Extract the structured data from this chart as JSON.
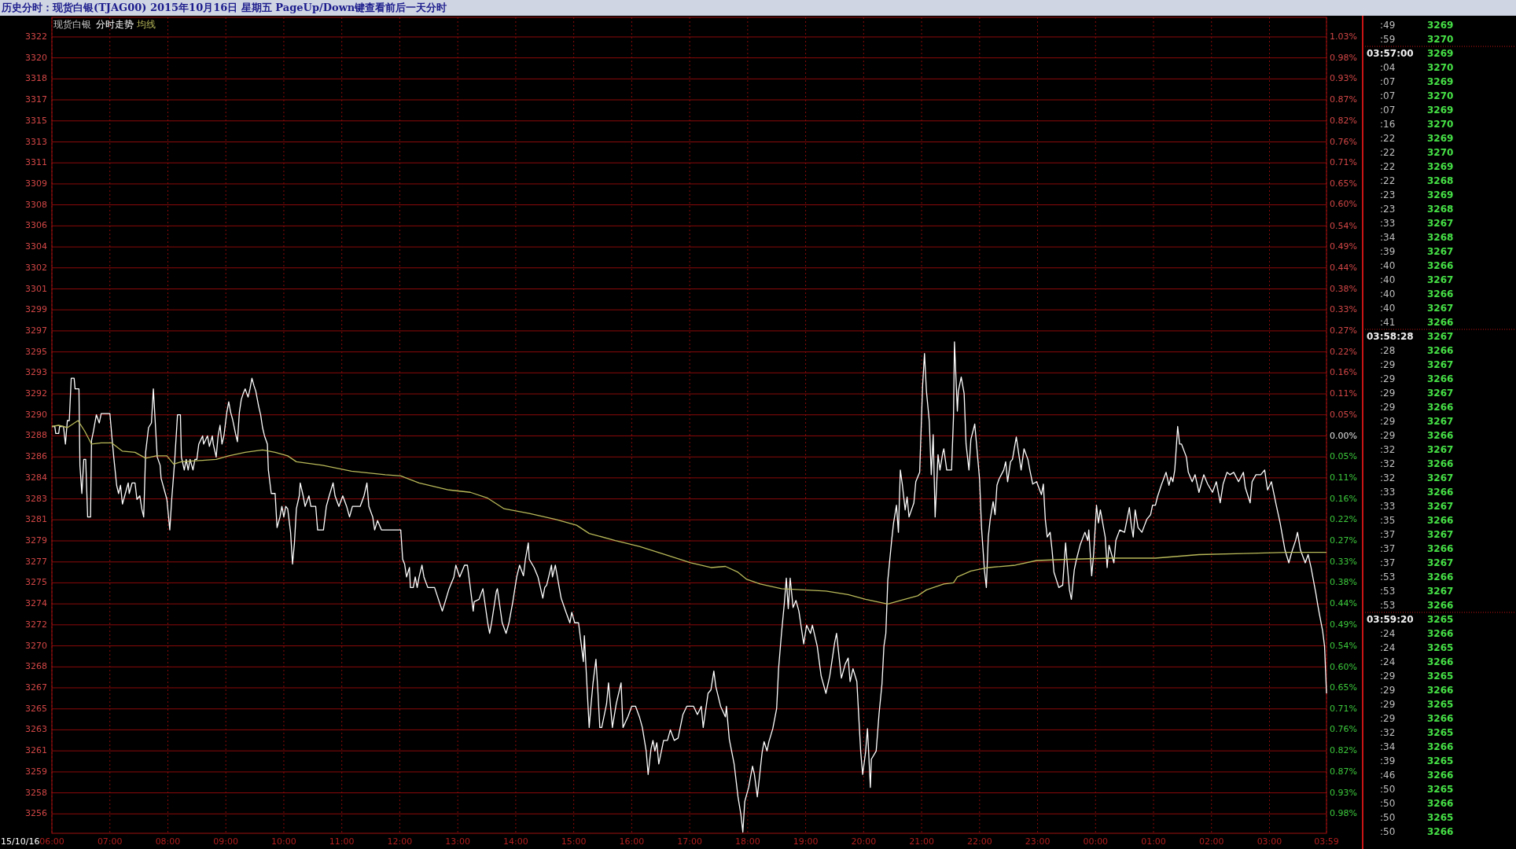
{
  "chart_data": [
    {
      "type": "line",
      "title": "历史分时：现货白银(TJAG00) 2015年10月16日 星期五  PageUp/Down键查看前后一天分时",
      "subtitle": "现货白银",
      "annotations": [
        "15/10/16"
      ],
      "legend": "top left",
      "grid": true,
      "xlim": [
        "2015-10-16T06:00",
        "2015-10-17T03:59"
      ],
      "xticks": [
        {
          "value": "2015-10-16T06:00",
          "label": "06:00"
        },
        {
          "value": "2015-10-16T07:00",
          "label": "07:00"
        },
        {
          "value": "2015-10-16T08:00",
          "label": "08:00"
        },
        {
          "value": "2015-10-16T09:00",
          "label": "09:00"
        },
        {
          "value": "2015-10-16T10:00",
          "label": "10:00"
        },
        {
          "value": "2015-10-16T11:00",
          "label": "11:00"
        },
        {
          "value": "2015-10-16T12:00",
          "label": "12:00"
        },
        {
          "value": "2015-10-16T13:00",
          "label": "13:00"
        },
        {
          "value": "2015-10-16T14:00",
          "label": "14:00"
        },
        {
          "value": "2015-10-16T15:00",
          "label": "15:00"
        },
        {
          "value": "2015-10-16T16:00",
          "label": "16:00"
        },
        {
          "value": "2015-10-16T17:00",
          "label": "17:00"
        },
        {
          "value": "2015-10-16T18:00",
          "label": "18:00"
        },
        {
          "value": "2015-10-16T19:00",
          "label": "19:00"
        },
        {
          "value": "2015-10-16T20:00",
          "label": "20:00"
        },
        {
          "value": "2015-10-16T21:00",
          "label": "21:00"
        },
        {
          "value": "2015-10-16T22:00",
          "label": "22:00"
        },
        {
          "value": "2015-10-16T23:00",
          "label": "23:00"
        },
        {
          "value": "2015-10-17T00:00",
          "label": "00:00"
        },
        {
          "value": "2015-10-17T01:00",
          "label": "01:00"
        },
        {
          "value": "2015-10-17T02:00",
          "label": "02:00"
        },
        {
          "value": "2015-10-17T03:00",
          "label": "03:00"
        },
        {
          "value": "2015-10-17T03:59",
          "label": "03:59"
        }
      ],
      "ylim": [
        3254.2,
        3323.6
      ],
      "yticks": [
        {
          "value": 3321.93,
          "label": "3322"
        },
        {
          "value": 3320.15,
          "label": "3320"
        },
        {
          "value": 3318.36,
          "label": "3318"
        },
        {
          "value": 3316.58,
          "label": "3317"
        },
        {
          "value": 3314.79,
          "label": "3315"
        },
        {
          "value": 3313.0,
          "label": "3313"
        },
        {
          "value": 3311.22,
          "label": "3311"
        },
        {
          "value": 3309.43,
          "label": "3309"
        },
        {
          "value": 3307.65,
          "label": "3308"
        },
        {
          "value": 3305.86,
          "label": "3306"
        },
        {
          "value": 3304.07,
          "label": "3304"
        },
        {
          "value": 3302.29,
          "label": "3302"
        },
        {
          "value": 3300.5,
          "label": "3301"
        },
        {
          "value": 3298.72,
          "label": "3299"
        },
        {
          "value": 3296.93,
          "label": "3297"
        },
        {
          "value": 3295.14,
          "label": "3295"
        },
        {
          "value": 3293.36,
          "label": "3293"
        },
        {
          "value": 3291.57,
          "label": "3292"
        },
        {
          "value": 3289.79,
          "label": "3290"
        },
        3288,
        {
          "value": 3286.21,
          "label": "3286"
        },
        {
          "value": 3284.43,
          "label": "3284"
        },
        {
          "value": 3282.64,
          "label": "3283"
        },
        {
          "value": 3280.86,
          "label": "3281"
        },
        {
          "value": 3279.07,
          "label": "3279"
        },
        {
          "value": 3277.28,
          "label": "3277"
        },
        {
          "value": 3275.5,
          "label": "3275"
        },
        {
          "value": 3273.71,
          "label": "3274"
        },
        {
          "value": 3271.93,
          "label": "3272"
        },
        {
          "value": 3270.14,
          "label": "3270"
        },
        {
          "value": 3268.35,
          "label": "3268"
        },
        {
          "value": 3266.57,
          "label": "3267"
        },
        {
          "value": 3264.78,
          "label": "3265"
        },
        {
          "value": 3263.0,
          "label": "3263"
        },
        {
          "value": 3261.21,
          "label": "3261"
        },
        {
          "value": 3259.42,
          "label": "3259"
        },
        {
          "value": 3257.64,
          "label": "3258"
        },
        {
          "value": 3255.85,
          "label": "3256"
        }
      ],
      "y2lim": [
        -1.028,
        1.083
      ],
      "y2ticks": [
        {
          "value": 1.032,
          "label": "1.03%"
        },
        {
          "value": 0.978,
          "label": "0.98%"
        },
        {
          "value": 0.925,
          "label": "0.93%"
        },
        {
          "value": 0.869,
          "label": "0.87%"
        },
        {
          "value": 0.815,
          "label": "0.82%"
        },
        {
          "value": 0.76,
          "label": "0.76%"
        },
        {
          "value": 0.706,
          "label": "0.71%"
        },
        {
          "value": 0.652,
          "label": "0.65%"
        },
        {
          "value": 0.598,
          "label": "0.60%"
        },
        {
          "value": 0.543,
          "label": "0.54%"
        },
        {
          "value": 0.489,
          "label": "0.49%"
        },
        {
          "value": 0.435,
          "label": "0.44%"
        },
        {
          "value": 0.38,
          "label": "0.38%"
        },
        {
          "value": 0.326,
          "label": "0.33%"
        },
        {
          "value": 0.272,
          "label": "0.27%"
        },
        {
          "value": 0.217,
          "label": "0.22%"
        },
        {
          "value": 0.163,
          "label": "0.16%"
        },
        {
          "value": 0.109,
          "label": "0.11%"
        },
        {
          "value": 0.054,
          "label": "0.05%"
        },
        {
          "value": 0,
          "label": "0.00%"
        },
        {
          "value": -0.054,
          "label": "0.05%"
        },
        {
          "value": -0.109,
          "label": "0.11%"
        },
        {
          "value": -0.163,
          "label": "0.16%"
        },
        {
          "value": -0.217,
          "label": "0.22%"
        },
        {
          "value": -0.272,
          "label": "0.27%"
        },
        {
          "value": -0.326,
          "label": "0.33%"
        },
        {
          "value": -0.38,
          "label": "0.38%"
        },
        {
          "value": -0.435,
          "label": "0.44%"
        },
        {
          "value": -0.489,
          "label": "0.49%"
        },
        {
          "value": -0.543,
          "label": "0.54%"
        },
        {
          "value": -0.598,
          "label": "0.60%"
        },
        {
          "value": -0.652,
          "label": "0.65%"
        },
        {
          "value": -0.706,
          "label": "0.71%"
        },
        {
          "value": -0.76,
          "label": "0.76%"
        },
        {
          "value": -0.815,
          "label": "0.82%"
        },
        {
          "value": -0.869,
          "label": "0.87%"
        },
        {
          "value": -0.925,
          "label": "0.93%"
        },
        {
          "value": -0.978,
          "label": "0.98%"
        }
      ],
      "series": [
        {
          "name": "分时走势",
          "color": "#ffffff",
          "x": [
            "2015-10-16T06:00",
            "2015-10-16T06:03",
            "2015-10-16T06:04",
            "2015-10-16T06:07",
            "2015-10-16T06:08",
            "2015-10-16T06:12",
            "2015-10-16T06:14",
            "2015-10-16T06:16",
            "2015-10-16T06:18",
            "2015-10-16T06:20",
            "2015-10-16T06:23",
            "2015-10-16T06:24",
            "2015-10-16T06:28",
            "2015-10-16T06:29",
            "2015-10-16T06:31",
            "2015-10-16T06:33",
            "2015-10-16T06:35",
            "2015-10-16T06:37",
            "2015-10-16T06:40",
            "2015-10-16T06:41",
            "2015-10-16T06:43",
            "2015-10-16T06:46",
            "2015-10-16T06:49",
            "2015-10-16T06:51",
            "2015-10-16T06:56",
            "2015-10-16T07:00",
            "2015-10-16T07:02",
            "2015-10-16T07:04",
            "2015-10-16T07:07",
            "2015-10-16T07:09",
            "2015-10-16T07:11",
            "2015-10-16T07:13",
            "2015-10-16T07:16",
            "2015-10-16T07:19",
            "2015-10-16T07:20",
            "2015-10-16T07:23",
            "2015-10-16T07:26",
            "2015-10-16T07:28",
            "2015-10-16T07:31",
            "2015-10-16T07:33",
            "2015-10-16T07:35",
            "2015-10-16T07:37",
            "2015-10-16T07:40",
            "2015-10-16T07:43",
            "2015-10-16T07:45",
            "2015-10-16T07:47",
            "2015-10-16T07:49",
            "2015-10-16T07:52",
            "2015-10-16T07:53",
            "2015-10-16T07:59",
            "2015-10-16T08:02",
            "2015-10-16T08:04",
            "2015-10-16T08:07",
            "2015-10-16T08:10",
            "2015-10-16T08:13",
            "2015-10-16T08:14",
            "2015-10-16T08:17",
            "2015-10-16T08:19",
            "2015-10-16T08:21",
            "2015-10-16T08:23",
            "2015-10-16T08:26",
            "2015-10-16T08:28",
            "2015-10-16T08:30",
            "2015-10-16T08:32",
            "2015-10-16T08:36",
            "2015-10-16T08:37",
            "2015-10-16T08:41",
            "2015-10-16T08:43",
            "2015-10-16T08:46",
            "2015-10-16T08:47",
            "2015-10-16T08:50",
            "2015-10-16T08:52",
            "2015-10-16T08:54",
            "2015-10-16T08:56",
            "2015-10-16T08:58",
            "2015-10-16T09:01",
            "2015-10-16T09:03",
            "2015-10-16T09:05",
            "2015-10-16T09:07",
            "2015-10-16T09:10",
            "2015-10-16T09:12",
            "2015-10-16T09:14",
            "2015-10-16T09:16",
            "2015-10-16T09:18",
            "2015-10-16T09:20",
            "2015-10-16T09:23",
            "2015-10-16T09:25",
            "2015-10-16T09:27",
            "2015-10-16T09:29",
            "2015-10-16T09:31",
            "2015-10-16T09:34",
            "2015-10-16T09:36",
            "2015-10-16T09:38",
            "2015-10-16T09:40",
            "2015-10-16T09:43",
            "2015-10-16T09:44",
            "2015-10-16T09:47",
            "2015-10-16T09:51",
            "2015-10-16T09:53",
            "2015-10-16T09:56",
            "2015-10-16T09:58",
            "2015-10-16T10:00",
            "2015-10-16T10:02",
            "2015-10-16T10:04",
            "2015-10-16T10:07",
            "2015-10-16T10:09",
            "2015-10-16T10:11",
            "2015-10-16T10:13",
            "2015-10-16T10:16",
            "2015-10-16T10:17",
            "2015-10-16T10:20",
            "2015-10-16T10:22",
            "2015-10-16T10:26",
            "2015-10-16T10:28",
            "2015-10-16T10:33",
            "2015-10-16T10:35",
            "2015-10-16T10:41",
            "2015-10-16T10:44",
            "2015-10-16T10:47",
            "2015-10-16T10:51",
            "2015-10-16T10:53",
            "2015-10-16T10:57",
            "2015-10-16T11:01",
            "2015-10-16T11:05",
            "2015-10-16T11:08",
            "2015-10-16T11:11",
            "2015-10-16T11:14",
            "2015-10-16T11:19",
            "2015-10-16T11:23",
            "2015-10-16T11:26",
            "2015-10-16T11:28",
            "2015-10-16T11:32",
            "2015-10-16T11:34",
            "2015-10-16T11:37",
            "2015-10-16T11:41",
            "2015-10-16T12:01",
            "2015-10-16T12:03",
            "2015-10-16T12:05",
            "2015-10-16T12:07",
            "2015-10-16T12:10",
            "2015-10-16T12:11",
            "2015-10-16T12:14",
            "2015-10-16T12:16",
            "2015-10-16T12:18",
            "2015-10-16T12:20",
            "2015-10-16T12:23",
            "2015-10-16T12:25",
            "2015-10-16T12:29",
            "2015-10-16T12:36",
            "2015-10-16T12:40",
            "2015-10-16T12:44",
            "2015-10-16T12:47",
            "2015-10-16T12:51",
            "2015-10-16T12:56",
            "2015-10-16T12:58",
            "2015-10-16T13:02",
            "2015-10-16T13:07",
            "2015-10-16T13:10",
            "2015-10-16T13:13",
            "2015-10-16T13:16",
            "2015-10-16T13:17",
            "2015-10-16T13:22",
            "2015-10-16T13:26",
            "2015-10-16T13:31",
            "2015-10-16T13:33",
            "2015-10-16T13:35",
            "2015-10-16T13:40",
            "2015-10-16T13:41",
            "2015-10-16T13:46",
            "2015-10-16T13:50",
            "2015-10-16T13:53",
            "2015-10-16T13:57",
            "2015-10-16T14:01",
            "2015-10-16T14:04",
            "2015-10-16T14:08",
            "2015-10-16T14:10",
            "2015-10-16T14:13",
            "2015-10-16T14:14",
            "2015-10-16T14:19",
            "2015-10-16T14:23",
            "2015-10-16T14:28",
            "2015-10-16T14:30",
            "2015-10-16T14:32",
            "2015-10-16T14:37",
            "2015-10-16T14:38",
            "2015-10-16T14:41",
            "2015-10-16T14:45",
            "2015-10-16T14:47",
            "2015-10-16T14:52",
            "2015-10-16T14:56",
            "2015-10-16T14:58",
            "2015-10-16T15:01",
            "2015-10-16T15:05",
            "2015-10-16T15:10",
            "2015-10-16T15:11",
            "2015-10-16T15:14",
            "2015-10-16T15:16",
            "2015-10-16T15:18",
            "2015-10-16T15:20",
            "2015-10-16T15:23",
            "2015-10-16T15:25",
            "2015-10-16T15:27",
            "2015-10-16T15:29",
            "2015-10-16T15:34",
            "2015-10-16T15:36",
            "2015-10-16T15:40",
            "2015-10-16T15:44",
            "2015-10-16T15:49",
            "2015-10-16T15:51",
            "2015-10-16T15:56",
            "2015-10-16T16:00",
            "2015-10-16T16:04",
            "2015-10-16T16:08",
            "2015-10-16T16:11",
            "2015-10-16T16:15",
            "2015-10-16T16:17",
            "2015-10-16T16:20",
            "2015-10-16T16:22",
            "2015-10-16T16:24",
            "2015-10-16T16:26",
            "2015-10-16T16:28",
            "2015-10-16T16:33",
            "2015-10-16T16:37",
            "2015-10-16T16:40",
            "2015-10-16T16:44",
            "2015-10-16T16:48",
            "2015-10-16T16:53",
            "2015-10-16T16:57",
            "2015-10-16T17:04",
            "2015-10-16T17:08",
            "2015-10-16T17:12",
            "2015-10-16T17:14",
            "2015-10-16T17:19",
            "2015-10-16T17:22",
            "2015-10-16T17:25",
            "2015-10-16T17:27",
            "2015-10-16T17:32",
            "2015-10-16T17:37",
            "2015-10-16T17:38",
            "2015-10-16T17:41",
            "2015-10-16T17:46",
            "2015-10-16T17:50",
            "2015-10-16T17:53",
            "2015-10-16T17:55",
            "2015-10-16T17:57",
            "2015-10-16T18:01",
            "2015-10-16T18:05",
            "2015-10-16T18:07",
            "2015-10-16T18:10",
            "2015-10-16T18:15",
            "2015-10-16T18:17",
            "2015-10-16T18:20",
            "2015-10-16T18:22",
            "2015-10-16T18:26",
            "2015-10-16T18:30",
            "2015-10-16T18:32",
            "2015-10-16T18:35",
            "2015-10-16T18:38",
            "2015-10-16T18:40",
            "2015-10-16T18:42",
            "2015-10-16T18:44",
            "2015-10-16T18:47",
            "2015-10-16T18:50",
            "2015-10-16T18:53",
            "2015-10-16T18:58",
            "2015-10-16T19:01",
            "2015-10-16T19:05",
            "2015-10-16T19:07",
            "2015-10-16T19:12",
            "2015-10-16T19:16",
            "2015-10-16T19:21",
            "2015-10-16T19:25",
            "2015-10-16T19:30",
            "2015-10-16T19:32",
            "2015-10-16T19:35",
            "2015-10-16T19:37",
            "2015-10-16T19:41",
            "2015-10-16T19:44",
            "2015-10-16T19:46",
            "2015-10-16T19:49",
            "2015-10-16T19:53",
            "2015-10-16T19:57",
            "2015-10-16T19:59",
            "2015-10-16T20:02",
            "2015-10-16T20:04",
            "2015-10-16T20:07",
            "2015-10-16T20:08",
            "2015-10-16T20:13",
            "2015-10-16T20:16",
            "2015-10-16T20:19",
            "2015-10-16T20:21",
            "2015-10-16T20:23",
            "2015-10-16T20:25",
            "2015-10-16T20:29",
            "2015-10-16T20:31",
            "2015-10-16T20:34",
            "2015-10-16T20:36",
            "2015-10-16T20:38",
            "2015-10-16T20:40",
            "2015-10-16T20:43",
            "2015-10-16T20:45",
            "2015-10-16T20:47",
            "2015-10-16T20:52",
            "2015-10-16T20:54",
            "2015-10-16T20:58",
            "2015-10-16T21:01",
            "2015-10-16T21:03",
            "2015-10-16T21:05",
            "2015-10-16T21:08",
            "2015-10-16T21:10",
            "2015-10-16T21:12",
            "2015-10-16T21:14",
            "2015-10-16T21:17",
            "2015-10-16T21:19",
            "2015-10-16T21:22",
            "2015-10-16T21:23",
            "2015-10-16T21:26",
            "2015-10-16T21:31",
            "2015-10-16T21:33",
            "2015-10-16T21:34",
            "2015-10-16T21:37",
            "2015-10-16T21:38",
            "2015-10-16T21:41",
            "2015-10-16T21:44",
            "2015-10-16T21:46",
            "2015-10-16T21:49",
            "2015-10-16T21:51",
            "2015-10-16T21:55",
            "2015-10-16T21:58",
            "2015-10-16T22:00",
            "2015-10-16T22:02",
            "2015-10-16T22:05",
            "2015-10-16T22:07",
            "2015-10-16T22:09",
            "2015-10-16T22:11",
            "2015-10-16T22:14",
            "2015-10-16T22:16",
            "2015-10-16T22:18",
            "2015-10-16T22:20",
            "2015-10-16T22:25",
            "2015-10-16T22:27",
            "2015-10-16T22:29",
            "2015-10-16T22:32",
            "2015-10-16T22:34",
            "2015-10-16T22:38",
            "2015-10-16T22:41",
            "2015-10-16T22:43",
            "2015-10-16T22:46",
            "2015-10-16T22:50",
            "2015-10-16T22:52",
            "2015-10-16T22:55",
            "2015-10-16T22:59",
            "2015-10-16T23:04",
            "2015-10-16T23:06",
            "2015-10-16T23:08",
            "2015-10-16T23:10",
            "2015-10-16T23:13",
            "2015-10-16T23:15",
            "2015-10-16T23:17",
            "2015-10-16T23:22",
            "2015-10-16T23:26",
            "2015-10-16T23:29",
            "2015-10-16T23:31",
            "2015-10-16T23:33",
            "2015-10-16T23:35",
            "2015-10-16T23:38",
            "2015-10-16T23:40",
            "2015-10-16T23:44",
            "2015-10-16T23:49",
            "2015-10-16T23:52",
            "2015-10-16T23:53",
            "2015-10-16T23:56",
            "2015-10-16T23:58",
            "2015-10-17T00:01",
            "2015-10-17T00:03",
            "2015-10-17T00:05",
            "2015-10-17T00:10",
            "2015-10-17T00:12",
            "2015-10-17T00:14",
            "2015-10-17T00:19",
            "2015-10-17T00:21",
            "2015-10-17T00:25",
            "2015-10-17T00:30",
            "2015-10-17T00:35",
            "2015-10-17T00:37",
            "2015-10-17T00:39",
            "2015-10-17T00:41",
            "2015-10-17T00:44",
            "2015-10-17T00:48",
            "2015-10-17T00:53",
            "2015-10-17T00:57",
            "2015-10-17T00:59",
            "2015-10-17T01:02",
            "2015-10-17T01:04",
            "2015-10-17T01:08",
            "2015-10-17T01:13",
            "2015-10-17T01:16",
            "2015-10-17T01:18",
            "2015-10-17T01:20",
            "2015-10-17T01:22",
            "2015-10-17T01:25",
            "2015-10-17T01:27",
            "2015-10-17T01:29",
            "2015-10-17T01:34",
            "2015-10-17T01:36",
            "2015-10-17T01:40",
            "2015-10-17T01:43",
            "2015-10-17T01:47",
            "2015-10-17T01:52",
            "2015-10-17T01:56",
            "2015-10-17T02:01",
            "2015-10-17T02:05",
            "2015-10-17T02:09",
            "2015-10-17T02:12",
            "2015-10-17T02:16",
            "2015-10-17T02:19",
            "2015-10-17T02:23",
            "2015-10-17T02:28",
            "2015-10-17T02:33",
            "2015-10-17T02:35",
            "2015-10-17T02:40",
            "2015-10-17T02:42",
            "2015-10-17T02:46",
            "2015-10-17T02:51",
            "2015-10-17T02:55",
            "2015-10-17T02:58",
            "2015-10-17T03:02",
            "2015-10-17T03:07",
            "2015-10-17T03:11",
            "2015-10-17T03:16",
            "2015-10-17T03:20",
            "2015-10-17T03:23",
            "2015-10-17T03:27",
            "2015-10-17T03:29",
            "2015-10-17T03:32",
            "2015-10-17T03:37",
            "2015-10-17T03:40",
            "2015-10-17T03:43",
            "2015-10-17T03:48",
            "2015-10-17T03:50",
            "2015-10-17T03:52",
            "2015-10-17T03:55",
            "2015-10-17T03:57",
            "2015-10-17T03:59"
          ],
          "values": [
            3288.8,
            3288.8,
            3288.2,
            3288.2,
            3288.8,
            3288.8,
            3287.3,
            3289.3,
            3289.3,
            3292.9,
            3292.9,
            3292.0,
            3292.0,
            3285.5,
            3283.1,
            3286.0,
            3286.0,
            3281.1,
            3281.1,
            3287.6,
            3288.4,
            3289.8,
            3289.1,
            3289.9,
            3289.9,
            3289.9,
            3288.0,
            3286.2,
            3283.8,
            3283.1,
            3283.8,
            3282.2,
            3283.1,
            3284.0,
            3283.1,
            3284.0,
            3284.0,
            3282.6,
            3282.9,
            3281.8,
            3281.1,
            3286.6,
            3288.7,
            3289.1,
            3292.0,
            3289.1,
            3286.2,
            3285.5,
            3284.4,
            3282.6,
            3280.0,
            3282.6,
            3285.8,
            3289.8,
            3289.8,
            3286.2,
            3285.1,
            3286.0,
            3285.1,
            3286.0,
            3285.1,
            3286.0,
            3286.0,
            3287.3,
            3288.0,
            3287.3,
            3288.0,
            3287.1,
            3288.0,
            3287.3,
            3286.2,
            3288.0,
            3288.9,
            3287.3,
            3288.0,
            3290.0,
            3290.9,
            3290.0,
            3289.4,
            3288.2,
            3287.5,
            3290.0,
            3291.1,
            3291.6,
            3292.0,
            3291.3,
            3292.0,
            3292.9,
            3292.3,
            3291.8,
            3290.5,
            3289.8,
            3288.7,
            3288.0,
            3287.3,
            3285.1,
            3283.1,
            3283.1,
            3280.2,
            3281.1,
            3282.0,
            3281.1,
            3282.0,
            3281.8,
            3279.8,
            3277.1,
            3278.9,
            3281.8,
            3282.9,
            3284.0,
            3282.9,
            3282.0,
            3282.9,
            3282.0,
            3282.0,
            3280.0,
            3280.0,
            3282.0,
            3282.9,
            3284.0,
            3282.9,
            3282.0,
            3282.9,
            3282.0,
            3281.1,
            3282.0,
            3282.0,
            3282.0,
            3282.9,
            3284.0,
            3282.0,
            3281.1,
            3280.0,
            3280.8,
            3280.0,
            3280.0,
            3277.5,
            3277.1,
            3276.0,
            3276.8,
            3275.1,
            3275.1,
            3276.0,
            3275.1,
            3276.0,
            3277.0,
            3276.0,
            3275.1,
            3275.1,
            3274.1,
            3273.1,
            3273.9,
            3275.0,
            3276.0,
            3277.0,
            3276.0,
            3277.0,
            3277.0,
            3275.1,
            3273.1,
            3273.9,
            3274.1,
            3275.0,
            3272.1,
            3271.2,
            3272.1,
            3274.8,
            3275.0,
            3272.1,
            3271.2,
            3272.1,
            3273.9,
            3276.0,
            3277.0,
            3276.1,
            3277.5,
            3278.9,
            3277.5,
            3276.8,
            3276.0,
            3274.2,
            3275.1,
            3275.3,
            3277.0,
            3276.0,
            3277.0,
            3275.1,
            3274.2,
            3273.0,
            3272.1,
            3273.0,
            3272.1,
            3272.1,
            3268.8,
            3271.0,
            3266.3,
            3263.2,
            3265.2,
            3267.0,
            3269.0,
            3266.3,
            3263.2,
            3263.2,
            3265.2,
            3267.0,
            3263.2,
            3265.2,
            3267.0,
            3263.2,
            3264.1,
            3265.0,
            3265.0,
            3264.1,
            3263.2,
            3261.2,
            3259.2,
            3261.4,
            3262.1,
            3261.2,
            3261.9,
            3260.1,
            3262.1,
            3262.1,
            3263.0,
            3262.1,
            3262.3,
            3264.3,
            3265.0,
            3265.0,
            3264.3,
            3265.0,
            3263.2,
            3266.1,
            3266.4,
            3268.0,
            3266.7,
            3265.0,
            3264.1,
            3265.0,
            3262.2,
            3260.1,
            3257.3,
            3255.8,
            3254.3,
            3256.9,
            3258.1,
            3259.9,
            3259.2,
            3257.3,
            3261.1,
            3262.0,
            3261.2,
            3262.0,
            3263.1,
            3264.8,
            3268.2,
            3271.2,
            3273.8,
            3275.9,
            3273.3,
            3275.9,
            3273.4,
            3274.0,
            3273.1,
            3270.3,
            3271.9,
            3271.2,
            3271.9,
            3270.1,
            3267.6,
            3266.1,
            3267.6,
            3270.4,
            3271.2,
            3268.9,
            3267.4,
            3268.6,
            3269.1,
            3267.1,
            3268.2,
            3267.1,
            3261.1,
            3259.2,
            3261.1,
            3263.1,
            3258.1,
            3260.5,
            3261.2,
            3264.4,
            3266.9,
            3270.1,
            3271.2,
            3275.7,
            3279.1,
            3280.6,
            3282.1,
            3279.8,
            3285.1,
            3283.9,
            3281.7,
            3282.8,
            3281.1,
            3282.3,
            3284.1,
            3284.9,
            3292.2,
            3295.0,
            3291.8,
            3289.2,
            3284.7,
            3288.1,
            3281.1,
            3286.4,
            3285.1,
            3286.6,
            3286.9,
            3285.1,
            3285.1,
            3289.6,
            3296.0,
            3290.1,
            3291.8,
            3293.0,
            3291.6,
            3287.3,
            3285.1,
            3287.7,
            3289.0,
            3286.2,
            3284.3,
            3280.2,
            3276.6,
            3275.1,
            3279.4,
            3280.9,
            3282.4,
            3281.3,
            3283.8,
            3284.3,
            3285.1,
            3285.8,
            3284.1,
            3285.8,
            3286.0,
            3287.9,
            3286.2,
            3285.1,
            3286.9,
            3286.0,
            3285.1,
            3283.9,
            3284.1,
            3283.0,
            3283.9,
            3280.9,
            3279.4,
            3279.8,
            3278.3,
            3276.4,
            3275.1,
            3275.3,
            3278.9,
            3276.8,
            3274.9,
            3274.1,
            3276.6,
            3277.4,
            3278.7,
            3279.8,
            3279.1,
            3280.0,
            3276.1,
            3277.9,
            3282.1,
            3280.6,
            3281.7,
            3279.4,
            3276.8,
            3278.7,
            3277.2,
            3279.1,
            3280.0,
            3279.8,
            3281.9,
            3280.4,
            3279.4,
            3281.7,
            3280.2,
            3279.8,
            3280.9,
            3281.3,
            3282.1,
            3282.1,
            3282.8,
            3283.8,
            3284.9,
            3283.8,
            3284.5,
            3284.1,
            3285.1,
            3288.8,
            3287.3,
            3287.3,
            3286.2,
            3284.9,
            3284.1,
            3284.7,
            3283.2,
            3284.7,
            3283.9,
            3283.2,
            3284.1,
            3282.3,
            3283.9,
            3284.9,
            3284.7,
            3284.9,
            3284.1,
            3284.9,
            3283.6,
            3282.3,
            3284.1,
            3284.7,
            3284.7,
            3285.1,
            3283.4,
            3284.1,
            3282.1,
            3280.6,
            3278.3,
            3277.2,
            3278.1,
            3279.1,
            3279.8,
            3278.3,
            3277.2,
            3277.9,
            3276.8,
            3274.6,
            3273.6,
            3272.7,
            3271.4,
            3270.1,
            3266.1
          ]
        },
        {
          "name": "均线",
          "color": "#b9b95a",
          "x": [
            "2015-10-16T06:00",
            "2015-10-16T06:07",
            "2015-10-16T06:16",
            "2015-10-16T06:27",
            "2015-10-16T06:34",
            "2015-10-16T06:41",
            "2015-10-16T06:51",
            "2015-10-16T07:02",
            "2015-10-16T07:13",
            "2015-10-16T07:26",
            "2015-10-16T07:37",
            "2015-10-16T07:48",
            "2015-10-16T07:59",
            "2015-10-16T08:06",
            "2015-10-16T08:14",
            "2015-10-16T08:32",
            "2015-10-16T08:50",
            "2015-10-16T09:03",
            "2015-10-16T09:20",
            "2015-10-16T09:38",
            "2015-10-16T09:51",
            "2015-10-16T10:04",
            "2015-10-16T10:13",
            "2015-10-16T10:40",
            "2015-10-16T11:10",
            "2015-10-16T11:45",
            "2015-10-16T12:01",
            "2015-10-16T12:20",
            "2015-10-16T12:51",
            "2015-10-16T13:13",
            "2015-10-16T13:31",
            "2015-10-16T13:48",
            "2015-10-16T14:14",
            "2015-10-16T14:41",
            "2015-10-16T15:03",
            "2015-10-16T15:16",
            "2015-10-16T15:43",
            "2015-10-16T16:08",
            "2015-10-16T16:35",
            "2015-10-16T17:01",
            "2015-10-16T17:22",
            "2015-10-16T17:37",
            "2015-10-16T17:50",
            "2015-10-16T17:59",
            "2015-10-16T18:13",
            "2015-10-16T18:35",
            "2015-10-16T18:58",
            "2015-10-16T19:21",
            "2015-10-16T19:44",
            "2015-10-16T20:02",
            "2015-10-16T20:25",
            "2015-10-16T20:38",
            "2015-10-16T20:56",
            "2015-10-16T21:05",
            "2015-10-16T21:23",
            "2015-10-16T21:33",
            "2015-10-16T21:37",
            "2015-10-16T21:51",
            "2015-10-16T22:09",
            "2015-10-16T22:37",
            "2015-10-16T22:59",
            "2015-10-16T23:31",
            "2015-10-17T00:16",
            "2015-10-17T01:02",
            "2015-10-17T01:47",
            "2015-10-17T02:33",
            "2015-10-17T03:18",
            "2015-10-17T03:59"
          ],
          "values": [
            3288.8,
            3288.9,
            3288.7,
            3289.3,
            3288.4,
            3287.3,
            3287.4,
            3287.4,
            3286.7,
            3286.6,
            3286.1,
            3286.3,
            3286.3,
            3285.6,
            3285.8,
            3285.9,
            3286.0,
            3286.3,
            3286.6,
            3286.8,
            3286.6,
            3286.3,
            3285.8,
            3285.5,
            3285.0,
            3284.7,
            3284.6,
            3284.0,
            3283.4,
            3283.2,
            3282.7,
            3281.8,
            3281.4,
            3280.9,
            3280.4,
            3279.7,
            3279.1,
            3278.6,
            3277.9,
            3277.2,
            3276.8,
            3276.9,
            3276.4,
            3275.8,
            3275.4,
            3275.0,
            3274.9,
            3274.8,
            3274.5,
            3274.1,
            3273.7,
            3274.0,
            3274.4,
            3274.9,
            3275.4,
            3275.5,
            3276.0,
            3276.5,
            3276.8,
            3277.0,
            3277.4,
            3277.5,
            3277.6,
            3277.6,
            3277.9,
            3278.0,
            3278.1,
            3278.1
          ]
        }
      ]
    },
    {
      "type": "other",
      "data_labels": true,
      "categories": [
        ":49",
        ":59",
        "03:57:00",
        ":04",
        ":07",
        ":07",
        ":07",
        ":16",
        ":22",
        ":22",
        ":22",
        ":22",
        ":23",
        ":23",
        ":33",
        ":34",
        ":39",
        ":40",
        ":40",
        ":40",
        ":40",
        ":41",
        "03:58:28",
        ":28",
        ":29",
        ":29",
        ":29",
        ":29",
        ":29",
        ":29",
        ":32",
        ":32",
        ":32",
        ":33",
        ":33",
        ":35",
        ":37",
        ":37",
        ":37",
        ":53",
        ":53",
        ":53",
        "03:59:20",
        ":24",
        ":24",
        ":24",
        ":29",
        ":29",
        ":29",
        ":29",
        ":32",
        ":34",
        ":39",
        ":46",
        ":50",
        ":50",
        ":50",
        ":50"
      ],
      "values": [
        3269,
        3270,
        3269,
        3270,
        3269,
        3270,
        3269,
        3270,
        3269,
        3270,
        3269,
        3268,
        3269,
        3268,
        3267,
        3268,
        3267,
        3266,
        3267,
        3266,
        3267,
        3266,
        3267,
        3266,
        3267,
        3266,
        3267,
        3266,
        3267,
        3266,
        3267,
        3266,
        3267,
        3266,
        3267,
        3266,
        3267,
        3266,
        3267,
        3266,
        3267,
        3266,
        3265,
        3266,
        3265,
        3266,
        3265,
        3266,
        3265,
        3266,
        3265,
        3266,
        3265,
        3266,
        3265,
        3266,
        3265,
        3266
      ]
    }
  ]
}
